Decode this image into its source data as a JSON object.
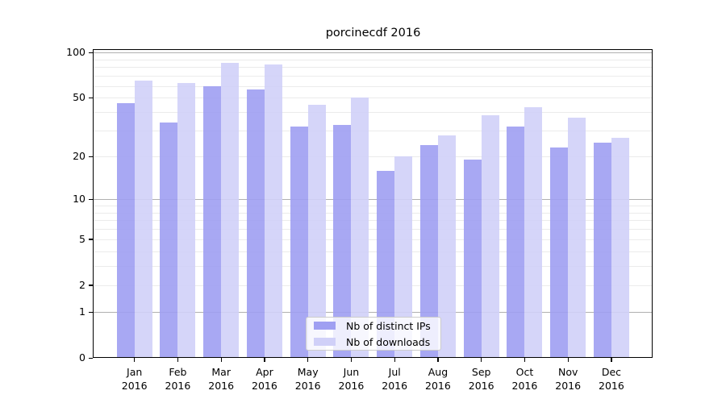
{
  "title": "porcinecdf 2016",
  "legend": {
    "items": [
      {
        "label": "Nb of distinct IPs",
        "color": "#9f9ff2"
      },
      {
        "label": "Nb of downloads",
        "color": "#d0d0f8"
      }
    ]
  },
  "y_axis": {
    "tick_labels": [
      "0",
      "1",
      "2",
      "5",
      "10",
      "20",
      "50",
      "100"
    ]
  },
  "x_axis": {
    "year": "2016",
    "months": [
      "Jan",
      "Feb",
      "Mar",
      "Apr",
      "May",
      "Jun",
      "Jul",
      "Aug",
      "Sep",
      "Oct",
      "Nov",
      "Dec"
    ]
  },
  "chart_data": {
    "type": "bar",
    "title": "porcinecdf 2016",
    "categories": [
      "Jan 2016",
      "Feb 2016",
      "Mar 2016",
      "Apr 2016",
      "May 2016",
      "Jun 2016",
      "Jul 2016",
      "Aug 2016",
      "Sep 2016",
      "Oct 2016",
      "Nov 2016",
      "Dec 2016"
    ],
    "series": [
      {
        "name": "Nb of distinct IPs",
        "color": "#9f9ff2",
        "values": [
          46,
          34,
          60,
          57,
          32,
          33,
          16,
          24,
          19,
          32,
          23,
          25
        ]
      },
      {
        "name": "Nb of downloads",
        "color": "#d0d0f8",
        "values": [
          65,
          63,
          85,
          83,
          45,
          50,
          20,
          28,
          38,
          43,
          37,
          27
        ]
      }
    ],
    "xlabel": "",
    "ylabel": "",
    "yscale": "log1p",
    "yticks": [
      0,
      1,
      2,
      5,
      10,
      20,
      50,
      100
    ],
    "ylim": [
      0,
      105
    ],
    "grid": "horizontal; major gray lines at 1,10,100; faint minor lines at 2-9 and 20-90",
    "legend_position": "lower center"
  }
}
